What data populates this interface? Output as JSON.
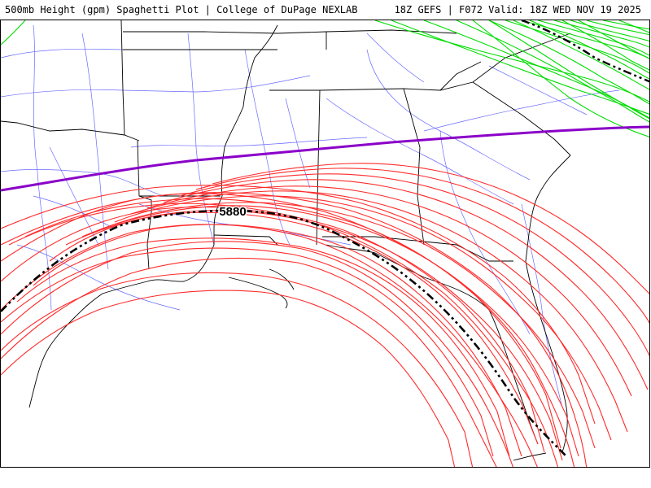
{
  "header": {
    "left_title": "500mb Height (gpm) Spaghetti Plot | College of DuPage NEXLAB",
    "right_title": "18Z GEFS | F072 Valid: 18Z WED NOV 19 2025"
  },
  "contours": {
    "red_label": "5880"
  },
  "colors": {
    "red_contour": "#ff2a2a",
    "green_contour": "#00dd00",
    "purple_contour": "#8a00c8",
    "mean_contour": "#000000",
    "roads": "#6a6aff",
    "borders": "#000000"
  }
}
